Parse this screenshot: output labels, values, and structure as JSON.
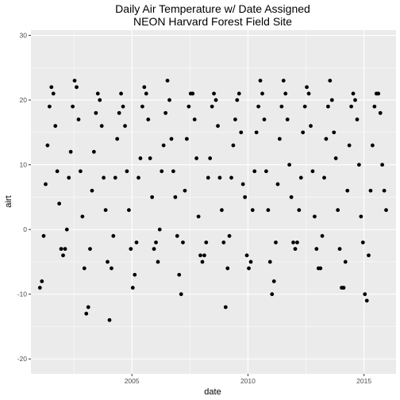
{
  "chart_data": {
    "type": "scatter",
    "title": [
      "Daily Air Temperature w/ Date Assigned",
      "NEON Harvard Forest Field Site"
    ],
    "xlabel": "date",
    "ylabel": "airt",
    "x_ticks": [
      {
        "label": "2005",
        "value": "2005-01-01"
      },
      {
        "label": "2010",
        "value": "2010-01-01"
      },
      {
        "label": "2015",
        "value": "2015-01-01"
      }
    ],
    "y_ticks": [
      {
        "label": "-20",
        "value": -20
      },
      {
        "label": "-10",
        "value": -10
      },
      {
        "label": "0",
        "value": 0
      },
      {
        "label": "10",
        "value": 10
      },
      {
        "label": "20",
        "value": 20
      },
      {
        "label": "30",
        "value": 30
      }
    ],
    "xlim": [
      "2000-08-27",
      "2016-05-19"
    ],
    "ylim": [
      -22.3,
      30.8
    ],
    "grid": true,
    "colors": {
      "panel": "#ebebeb",
      "grid": "#ffffff",
      "point": "#000000"
    },
    "series": [
      {
        "x": [
          "2001-01-15",
          "2001-02-15",
          "2001-03-15",
          "2001-04-15",
          "2001-05-15",
          "2001-06-15",
          "2001-07-15",
          "2001-08-15",
          "2001-09-15",
          "2001-10-15",
          "2001-11-15",
          "2001-12-15",
          "2002-01-15",
          "2002-02-15",
          "2002-03-15",
          "2002-04-15",
          "2002-05-15",
          "2002-06-15",
          "2002-07-15",
          "2002-08-15",
          "2002-09-15",
          "2002-10-15",
          "2002-11-15",
          "2002-12-15",
          "2003-01-15",
          "2003-02-15",
          "2003-03-15",
          "2003-04-15",
          "2003-05-15",
          "2003-06-15",
          "2003-07-15",
          "2003-08-15",
          "2003-09-15",
          "2003-10-15",
          "2003-11-15",
          "2003-12-15",
          "2004-01-15",
          "2004-02-15",
          "2004-03-15",
          "2004-04-15",
          "2004-05-15",
          "2004-06-15",
          "2004-07-15",
          "2004-08-15",
          "2004-09-15",
          "2004-10-15",
          "2004-11-15",
          "2004-12-15",
          "2005-01-15",
          "2005-02-15",
          "2005-03-15",
          "2005-04-15",
          "2005-05-15",
          "2005-06-15",
          "2005-07-15",
          "2005-08-15",
          "2005-09-15",
          "2005-10-15",
          "2005-11-15",
          "2005-12-15",
          "2006-01-15",
          "2006-02-15",
          "2006-03-15",
          "2006-04-15",
          "2006-05-15",
          "2006-06-15",
          "2006-07-15",
          "2006-08-15",
          "2006-09-15",
          "2006-10-15",
          "2006-11-15",
          "2006-12-15",
          "2007-01-15",
          "2007-02-15",
          "2007-03-15",
          "2007-04-15",
          "2007-05-15",
          "2007-06-15",
          "2007-07-15",
          "2007-08-15",
          "2007-09-15",
          "2007-10-15",
          "2007-11-15",
          "2007-12-15",
          "2008-01-15",
          "2008-02-15",
          "2008-03-15",
          "2008-04-15",
          "2008-05-15",
          "2008-06-15",
          "2008-07-15",
          "2008-08-15",
          "2008-09-15",
          "2008-10-15",
          "2008-11-15",
          "2008-12-15",
          "2009-01-15",
          "2009-02-15",
          "2009-03-15",
          "2009-04-15",
          "2009-05-15",
          "2009-06-15",
          "2009-07-15",
          "2009-08-15",
          "2009-09-15",
          "2009-10-15",
          "2009-11-15",
          "2009-12-15",
          "2010-01-15",
          "2010-02-15",
          "2010-03-15",
          "2010-04-15",
          "2010-05-15",
          "2010-06-15",
          "2010-07-15",
          "2010-08-15",
          "2010-09-15",
          "2010-10-15",
          "2010-11-15",
          "2010-12-15",
          "2011-01-15",
          "2011-02-15",
          "2011-03-15",
          "2011-04-15",
          "2011-05-15",
          "2011-06-15",
          "2011-07-15",
          "2011-08-15",
          "2011-09-15",
          "2011-10-15",
          "2011-11-15",
          "2011-12-15",
          "2012-01-15",
          "2012-02-15",
          "2012-03-15",
          "2012-04-15",
          "2012-05-15",
          "2012-06-15",
          "2012-07-15",
          "2012-08-15",
          "2012-09-15",
          "2012-10-15",
          "2012-11-15",
          "2012-12-15",
          "2013-01-15",
          "2013-02-15",
          "2013-03-15",
          "2013-04-15",
          "2013-05-15",
          "2013-06-15",
          "2013-07-15",
          "2013-08-15",
          "2013-09-15",
          "2013-10-15",
          "2013-11-15",
          "2013-12-15",
          "2014-01-15",
          "2014-02-15",
          "2014-03-15",
          "2014-04-15",
          "2014-05-15",
          "2014-06-15",
          "2014-07-15",
          "2014-08-15",
          "2014-09-15",
          "2014-10-15",
          "2014-11-15",
          "2014-12-15",
          "2015-01-15",
          "2015-02-15",
          "2015-03-15",
          "2015-04-15",
          "2015-05-15",
          "2015-06-15",
          "2015-07-15",
          "2015-08-15",
          "2015-09-15",
          "2015-10-15",
          "2015-11-15",
          "2015-12-15"
        ],
        "y": [
          -9,
          -8,
          -1,
          7,
          13,
          19,
          22,
          21,
          16,
          9,
          4,
          -3,
          -4,
          -3,
          0,
          8,
          12,
          19,
          23,
          22,
          17,
          9,
          2,
          -6,
          -13,
          -12,
          -3,
          6,
          12,
          18,
          21,
          20,
          16,
          8,
          3,
          -5,
          -14,
          -6,
          -1,
          8,
          14,
          18,
          21,
          19,
          16,
          9,
          3,
          -3,
          -9,
          -7,
          -2,
          8,
          11,
          19,
          22,
          21,
          17,
          11,
          5,
          -3,
          -2,
          -5,
          0,
          9,
          13,
          18,
          23,
          20,
          14,
          9,
          5,
          -1,
          -7,
          -10,
          -2,
          6,
          14,
          19,
          21,
          21,
          17,
          11,
          2,
          -4,
          -5,
          -4,
          -2,
          8,
          11,
          19,
          21,
          20,
          16,
          8,
          3,
          -2,
          -12,
          -6,
          -1,
          8,
          13,
          17,
          20,
          21,
          15,
          7,
          5,
          -4,
          -6,
          -5,
          3,
          9,
          15,
          19,
          23,
          21,
          17,
          9,
          3,
          -5,
          -10,
          -8,
          -2,
          7,
          14,
          19,
          23,
          21,
          17,
          10,
          5,
          -2,
          -3,
          -2,
          3,
          8,
          15,
          19,
          22,
          21,
          16,
          9,
          2,
          -3,
          -6,
          -6,
          -1,
          8,
          14,
          19,
          23,
          20,
          15,
          11,
          3,
          -3,
          -9,
          -9,
          -5,
          6,
          13,
          19,
          21,
          20,
          17,
          10,
          2,
          -2,
          -10,
          -11,
          -4,
          6,
          13,
          19,
          21,
          21,
          18,
          10,
          6,
          3
        ]
      }
    ]
  }
}
